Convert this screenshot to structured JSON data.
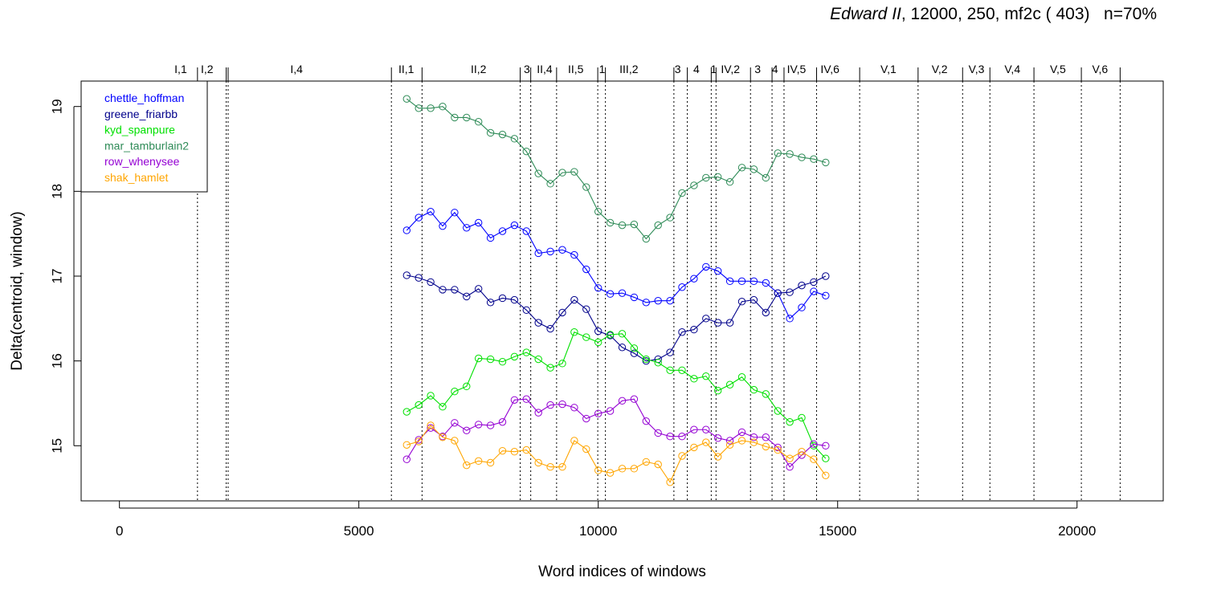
{
  "chart_data": {
    "type": "line",
    "title_italic": "Edward II",
    "title_rest": ", 12000, 250, mf2c ( 403)   n=70%",
    "xlabel": "Word indices of windows",
    "ylabel": "Delta(centroid, window)",
    "xlim": [
      -800,
      21800
    ],
    "ylim": [
      14.35,
      19.3
    ],
    "x_ticks": [
      0,
      5000,
      10000,
      15000,
      20000
    ],
    "x_tick_labels": [
      "0",
      "5000",
      "10000",
      "15000",
      "20000"
    ],
    "y_ticks": [
      15,
      16,
      17,
      18,
      19
    ],
    "y_tick_labels": [
      "15",
      "16",
      "17",
      "18",
      "19"
    ],
    "legend_position": "top-left",
    "grid": false,
    "scenes": [
      {
        "label": "I,1",
        "label_x": 1280,
        "boundary": 1630
      },
      {
        "label": "I,2",
        "label_x": 1830,
        "boundary": 2230
      },
      {
        "label": "",
        "label_x": null,
        "boundary": 2270
      },
      {
        "label": "I,4",
        "label_x": 3700,
        "boundary": 5680
      },
      {
        "label": "II,1",
        "label_x": 5990,
        "boundary": 6320
      },
      {
        "label": "II,2",
        "label_x": 7500,
        "boundary": 8370
      },
      {
        "label": "3",
        "label_x": 8510,
        "boundary": 8590
      },
      {
        "label": "II,4",
        "label_x": 8880,
        "boundary": 9130
      },
      {
        "label": "II,5",
        "label_x": 9530,
        "boundary": 9990
      },
      {
        "label": "1",
        "label_x": 10080,
        "boundary": 10150
      },
      {
        "label": "III,2",
        "label_x": 10640,
        "boundary": 11580
      },
      {
        "label": "3",
        "label_x": 11660,
        "boundary": 11860
      },
      {
        "label": "4",
        "label_x": 12050,
        "boundary": 12360
      },
      {
        "label": "1",
        "label_x": 12410,
        "boundary": 12460
      },
      {
        "label": "IV,2",
        "label_x": 12760,
        "boundary": 13180
      },
      {
        "label": "3",
        "label_x": 13330,
        "boundary": 13630
      },
      {
        "label": "4",
        "label_x": 13690,
        "boundary": 13880
      },
      {
        "label": "IV,5",
        "label_x": 14140,
        "boundary": 14560
      },
      {
        "label": "IV,6",
        "label_x": 14840,
        "boundary": 15460
      },
      {
        "label": "V,1",
        "label_x": 16060,
        "boundary": 16680
      },
      {
        "label": "V,2",
        "label_x": 17130,
        "boundary": 17610
      },
      {
        "label": "V,3",
        "label_x": 17900,
        "boundary": 18180
      },
      {
        "label": "V,4",
        "label_x": 18650,
        "boundary": 19100
      },
      {
        "label": "V,5",
        "label_x": 19600,
        "boundary": 20090
      },
      {
        "label": "V,6",
        "label_x": 20480,
        "boundary": 20900
      }
    ],
    "x": [
      6000,
      6250,
      6500,
      6750,
      7000,
      7250,
      7500,
      7750,
      8000,
      8250,
      8500,
      8750,
      9000,
      9250,
      9500,
      9750,
      10000,
      10250,
      10500,
      10750,
      11000,
      11250,
      11500,
      11750,
      12000,
      12250,
      12500,
      12750,
      13000,
      13250,
      13500,
      13750,
      14000,
      14250,
      14500,
      14750
    ],
    "series": [
      {
        "name": "chettle_hoffman",
        "color": "#0000ff",
        "values": [
          17.54,
          17.69,
          17.76,
          17.59,
          17.75,
          17.57,
          17.63,
          17.45,
          17.53,
          17.6,
          17.53,
          17.27,
          17.29,
          17.31,
          17.25,
          17.08,
          16.86,
          16.79,
          16.8,
          16.75,
          16.69,
          16.71,
          16.71,
          16.87,
          16.97,
          17.11,
          17.06,
          16.94,
          16.94,
          16.94,
          16.92,
          16.8,
          16.5,
          16.63,
          16.82,
          16.77
        ]
      },
      {
        "name": "greene_friarbb",
        "color": "#00008b",
        "values": [
          17.01,
          16.98,
          16.93,
          16.84,
          16.84,
          16.76,
          16.85,
          16.69,
          16.74,
          16.72,
          16.6,
          16.45,
          16.38,
          16.57,
          16.72,
          16.61,
          16.35,
          16.3,
          16.16,
          16.09,
          16.0,
          16.02,
          16.1,
          16.34,
          16.37,
          16.5,
          16.45,
          16.45,
          16.7,
          16.72,
          16.57,
          16.8,
          16.81,
          16.89,
          16.93,
          17.0
        ]
      },
      {
        "name": "kyd_spanpure",
        "color": "#00e000",
        "values": [
          15.4,
          15.48,
          15.59,
          15.46,
          15.64,
          15.7,
          16.03,
          16.02,
          15.99,
          16.05,
          16.1,
          16.02,
          15.92,
          15.97,
          16.34,
          16.28,
          16.22,
          16.31,
          16.32,
          16.15,
          16.02,
          15.98,
          15.89,
          15.89,
          15.79,
          15.82,
          15.65,
          15.72,
          15.81,
          15.66,
          15.61,
          15.41,
          15.28,
          15.33,
          15.0,
          14.85
        ]
      },
      {
        "name": "mar_tamburlain2",
        "color": "#2e8b57",
        "values": [
          19.09,
          18.98,
          18.98,
          19.0,
          18.87,
          18.87,
          18.82,
          18.69,
          18.67,
          18.62,
          18.47,
          18.21,
          18.09,
          18.22,
          18.23,
          18.05,
          17.76,
          17.63,
          17.6,
          17.61,
          17.44,
          17.6,
          17.69,
          17.98,
          18.07,
          18.16,
          18.17,
          18.11,
          18.28,
          18.26,
          18.16,
          18.45,
          18.44,
          18.4,
          18.38,
          18.34
        ]
      },
      {
        "name": "row_whenysee",
        "color": "#9400d3",
        "values": [
          14.84,
          15.07,
          15.21,
          15.11,
          15.27,
          15.18,
          15.25,
          15.24,
          15.28,
          15.54,
          15.55,
          15.39,
          15.48,
          15.49,
          15.45,
          15.32,
          15.38,
          15.41,
          15.53,
          15.55,
          15.29,
          15.15,
          15.11,
          15.11,
          15.19,
          15.19,
          15.09,
          15.06,
          15.16,
          15.1,
          15.1,
          14.98,
          14.75,
          14.89,
          15.02,
          15.0
        ]
      },
      {
        "name": "shak_hamlet",
        "color": "#ffa500",
        "values": [
          15.01,
          15.05,
          15.24,
          15.1,
          15.06,
          14.77,
          14.82,
          14.8,
          14.94,
          14.93,
          14.95,
          14.8,
          14.75,
          14.75,
          15.06,
          14.96,
          14.71,
          14.68,
          14.73,
          14.73,
          14.81,
          14.78,
          14.57,
          14.88,
          14.98,
          15.04,
          14.87,
          15.01,
          15.06,
          15.04,
          14.99,
          14.95,
          14.85,
          14.93,
          14.84,
          14.65
        ]
      }
    ]
  }
}
